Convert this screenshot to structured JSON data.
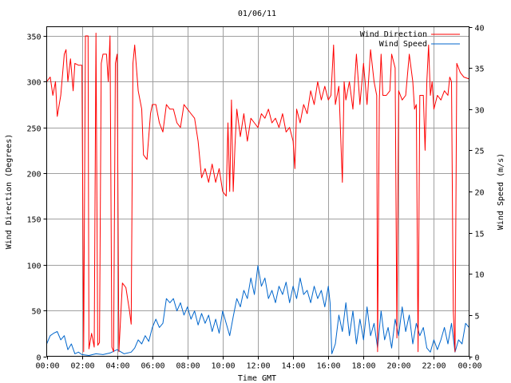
{
  "chart_data": {
    "type": "line",
    "title": "01/06/11",
    "xlabel": "Time GMT",
    "ylabel_left": "Wind Direction (Degrees)",
    "ylabel_right": "Wind Speed (m/s)",
    "xlim": [
      0,
      24
    ],
    "ylim_left": [
      0,
      360
    ],
    "ylim_right": [
      0,
      40
    ],
    "x_ticks": [
      0,
      2,
      4,
      6,
      8,
      10,
      12,
      14,
      16,
      18,
      20,
      22,
      24
    ],
    "x_tick_labels": [
      "00:00",
      "02:00",
      "04:00",
      "06:00",
      "08:00",
      "10:00",
      "12:00",
      "14:00",
      "16:00",
      "18:00",
      "20:00",
      "22:00",
      "00:00"
    ],
    "y_left_ticks": [
      0,
      50,
      100,
      150,
      200,
      250,
      300,
      350
    ],
    "y_right_ticks": [
      0,
      5,
      10,
      15,
      20,
      25,
      30,
      35,
      40
    ],
    "grid": true,
    "legend_position": "top-right",
    "series": [
      {
        "name": "Wind Direction",
        "axis": "left",
        "color": "#ff0000",
        "points": [
          [
            0.0,
            300
          ],
          [
            0.2,
            305
          ],
          [
            0.35,
            285
          ],
          [
            0.5,
            300
          ],
          [
            0.6,
            262
          ],
          [
            0.8,
            285
          ],
          [
            1.0,
            330
          ],
          [
            1.1,
            335
          ],
          [
            1.2,
            300
          ],
          [
            1.35,
            325
          ],
          [
            1.5,
            290
          ],
          [
            1.6,
            320
          ],
          [
            1.8,
            318
          ],
          [
            2.0,
            318
          ],
          [
            2.1,
            5
          ],
          [
            2.2,
            350
          ],
          [
            2.35,
            350
          ],
          [
            2.4,
            8
          ],
          [
            2.55,
            25
          ],
          [
            2.7,
            10
          ],
          [
            2.8,
            353
          ],
          [
            2.9,
            12
          ],
          [
            3.0,
            15
          ],
          [
            3.1,
            320
          ],
          [
            3.2,
            330
          ],
          [
            3.4,
            330
          ],
          [
            3.5,
            300
          ],
          [
            3.6,
            350
          ],
          [
            3.7,
            10
          ],
          [
            3.8,
            5
          ],
          [
            3.9,
            320
          ],
          [
            4.0,
            330
          ],
          [
            4.1,
            5
          ],
          [
            4.3,
            80
          ],
          [
            4.5,
            75
          ],
          [
            4.7,
            50
          ],
          [
            4.8,
            35
          ],
          [
            4.9,
            320
          ],
          [
            5.0,
            340
          ],
          [
            5.2,
            290
          ],
          [
            5.4,
            270
          ],
          [
            5.5,
            220
          ],
          [
            5.7,
            215
          ],
          [
            5.9,
            265
          ],
          [
            6.0,
            275
          ],
          [
            6.2,
            275
          ],
          [
            6.4,
            255
          ],
          [
            6.6,
            245
          ],
          [
            6.8,
            275
          ],
          [
            7.0,
            270
          ],
          [
            7.2,
            270
          ],
          [
            7.4,
            255
          ],
          [
            7.6,
            250
          ],
          [
            7.8,
            275
          ],
          [
            8.0,
            270
          ],
          [
            8.2,
            265
          ],
          [
            8.4,
            260
          ],
          [
            8.6,
            235
          ],
          [
            8.8,
            195
          ],
          [
            9.0,
            205
          ],
          [
            9.2,
            190
          ],
          [
            9.4,
            210
          ],
          [
            9.6,
            190
          ],
          [
            9.8,
            205
          ],
          [
            10.0,
            180
          ],
          [
            10.2,
            175
          ],
          [
            10.3,
            255
          ],
          [
            10.4,
            180
          ],
          [
            10.5,
            280
          ],
          [
            10.6,
            180
          ],
          [
            10.7,
            230
          ],
          [
            10.8,
            270
          ],
          [
            11.0,
            240
          ],
          [
            11.2,
            265
          ],
          [
            11.4,
            235
          ],
          [
            11.6,
            260
          ],
          [
            11.8,
            255
          ],
          [
            12.0,
            250
          ],
          [
            12.2,
            265
          ],
          [
            12.4,
            260
          ],
          [
            12.6,
            270
          ],
          [
            12.8,
            255
          ],
          [
            13.0,
            260
          ],
          [
            13.2,
            250
          ],
          [
            13.4,
            265
          ],
          [
            13.6,
            245
          ],
          [
            13.8,
            250
          ],
          [
            14.0,
            235
          ],
          [
            14.1,
            205
          ],
          [
            14.2,
            270
          ],
          [
            14.4,
            255
          ],
          [
            14.6,
            275
          ],
          [
            14.8,
            265
          ],
          [
            15.0,
            290
          ],
          [
            15.2,
            275
          ],
          [
            15.4,
            300
          ],
          [
            15.6,
            280
          ],
          [
            15.8,
            295
          ],
          [
            16.0,
            280
          ],
          [
            16.15,
            285
          ],
          [
            16.3,
            340
          ],
          [
            16.4,
            275
          ],
          [
            16.6,
            295
          ],
          [
            16.8,
            190
          ],
          [
            16.9,
            300
          ],
          [
            17.0,
            280
          ],
          [
            17.2,
            300
          ],
          [
            17.4,
            270
          ],
          [
            17.6,
            330
          ],
          [
            17.8,
            275
          ],
          [
            18.0,
            320
          ],
          [
            18.2,
            275
          ],
          [
            18.4,
            335
          ],
          [
            18.6,
            300
          ],
          [
            18.75,
            285
          ],
          [
            18.8,
            5
          ],
          [
            18.9,
            280
          ],
          [
            19.0,
            330
          ],
          [
            19.1,
            285
          ],
          [
            19.3,
            285
          ],
          [
            19.5,
            290
          ],
          [
            19.6,
            330
          ],
          [
            19.8,
            315
          ],
          [
            19.9,
            20
          ],
          [
            20.0,
            290
          ],
          [
            20.2,
            280
          ],
          [
            20.4,
            285
          ],
          [
            20.6,
            330
          ],
          [
            20.8,
            300
          ],
          [
            20.9,
            270
          ],
          [
            21.0,
            275
          ],
          [
            21.1,
            5
          ],
          [
            21.2,
            285
          ],
          [
            21.4,
            285
          ],
          [
            21.5,
            225
          ],
          [
            21.6,
            300
          ],
          [
            21.7,
            340
          ],
          [
            21.8,
            285
          ],
          [
            21.9,
            300
          ],
          [
            22.0,
            270
          ],
          [
            22.2,
            285
          ],
          [
            22.4,
            280
          ],
          [
            22.5,
            285
          ],
          [
            22.6,
            290
          ],
          [
            22.8,
            285
          ],
          [
            22.9,
            305
          ],
          [
            23.0,
            300
          ],
          [
            23.1,
            50
          ],
          [
            23.2,
            5
          ],
          [
            23.3,
            320
          ],
          [
            23.5,
            310
          ],
          [
            23.7,
            305
          ],
          [
            24.0,
            303
          ]
        ]
      },
      {
        "name": "Wind Speed",
        "axis": "right",
        "color": "#0066cc",
        "points": [
          [
            0.0,
            1.5
          ],
          [
            0.2,
            2.5
          ],
          [
            0.4,
            2.8
          ],
          [
            0.6,
            3.0
          ],
          [
            0.8,
            2.0
          ],
          [
            1.0,
            2.5
          ],
          [
            1.2,
            0.8
          ],
          [
            1.4,
            1.5
          ],
          [
            1.6,
            0.3
          ],
          [
            1.8,
            0.5
          ],
          [
            2.0,
            0.2
          ],
          [
            2.4,
            0.1
          ],
          [
            2.8,
            0.3
          ],
          [
            3.2,
            0.2
          ],
          [
            3.6,
            0.4
          ],
          [
            4.0,
            0.8
          ],
          [
            4.4,
            0.3
          ],
          [
            4.8,
            0.5
          ],
          [
            5.0,
            1.0
          ],
          [
            5.2,
            2.0
          ],
          [
            5.4,
            1.5
          ],
          [
            5.6,
            2.5
          ],
          [
            5.8,
            1.8
          ],
          [
            6.0,
            3.5
          ],
          [
            6.2,
            4.5
          ],
          [
            6.4,
            3.5
          ],
          [
            6.6,
            4.0
          ],
          [
            6.8,
            7.0
          ],
          [
            7.0,
            6.5
          ],
          [
            7.2,
            7.0
          ],
          [
            7.4,
            5.5
          ],
          [
            7.6,
            6.5
          ],
          [
            7.8,
            5.0
          ],
          [
            8.0,
            6.0
          ],
          [
            8.2,
            4.5
          ],
          [
            8.4,
            5.5
          ],
          [
            8.6,
            3.8
          ],
          [
            8.8,
            5.2
          ],
          [
            9.0,
            4.0
          ],
          [
            9.2,
            5.0
          ],
          [
            9.4,
            3.0
          ],
          [
            9.6,
            4.5
          ],
          [
            9.8,
            2.8
          ],
          [
            10.0,
            5.5
          ],
          [
            10.2,
            4.0
          ],
          [
            10.4,
            2.5
          ],
          [
            10.6,
            4.8
          ],
          [
            10.8,
            7.0
          ],
          [
            11.0,
            6.0
          ],
          [
            11.2,
            8.0
          ],
          [
            11.4,
            7.0
          ],
          [
            11.6,
            9.5
          ],
          [
            11.8,
            7.5
          ],
          [
            12.0,
            11.0
          ],
          [
            12.2,
            8.5
          ],
          [
            12.4,
            9.5
          ],
          [
            12.6,
            7.0
          ],
          [
            12.8,
            8.0
          ],
          [
            13.0,
            6.5
          ],
          [
            13.2,
            8.5
          ],
          [
            13.4,
            7.5
          ],
          [
            13.6,
            9.0
          ],
          [
            13.8,
            6.5
          ],
          [
            14.0,
            8.5
          ],
          [
            14.2,
            7.0
          ],
          [
            14.4,
            9.5
          ],
          [
            14.6,
            7.5
          ],
          [
            14.8,
            8.0
          ],
          [
            15.0,
            6.5
          ],
          [
            15.2,
            8.5
          ],
          [
            15.4,
            7.0
          ],
          [
            15.6,
            8.0
          ],
          [
            15.8,
            6.0
          ],
          [
            16.0,
            8.5
          ],
          [
            16.1,
            6.5
          ],
          [
            16.2,
            0.3
          ],
          [
            16.4,
            1.5
          ],
          [
            16.6,
            5.0
          ],
          [
            16.8,
            3.0
          ],
          [
            17.0,
            6.5
          ],
          [
            17.2,
            2.5
          ],
          [
            17.4,
            5.5
          ],
          [
            17.6,
            1.5
          ],
          [
            17.8,
            4.5
          ],
          [
            18.0,
            2.0
          ],
          [
            18.2,
            6.0
          ],
          [
            18.4,
            2.5
          ],
          [
            18.6,
            4.0
          ],
          [
            18.8,
            1.0
          ],
          [
            19.0,
            5.5
          ],
          [
            19.2,
            2.0
          ],
          [
            19.4,
            3.5
          ],
          [
            19.6,
            1.0
          ],
          [
            19.8,
            4.5
          ],
          [
            20.0,
            2.5
          ],
          [
            20.2,
            6.0
          ],
          [
            20.4,
            3.0
          ],
          [
            20.6,
            5.0
          ],
          [
            20.8,
            1.5
          ],
          [
            21.0,
            4.0
          ],
          [
            21.2,
            2.5
          ],
          [
            21.4,
            3.5
          ],
          [
            21.6,
            1.0
          ],
          [
            21.8,
            0.5
          ],
          [
            22.0,
            2.0
          ],
          [
            22.2,
            0.8
          ],
          [
            22.4,
            2.0
          ],
          [
            22.6,
            3.5
          ],
          [
            22.8,
            1.5
          ],
          [
            23.0,
            4.0
          ],
          [
            23.2,
            0.5
          ],
          [
            23.4,
            2.0
          ],
          [
            23.6,
            1.5
          ],
          [
            23.8,
            4.0
          ],
          [
            24.0,
            3.5
          ]
        ]
      }
    ]
  }
}
